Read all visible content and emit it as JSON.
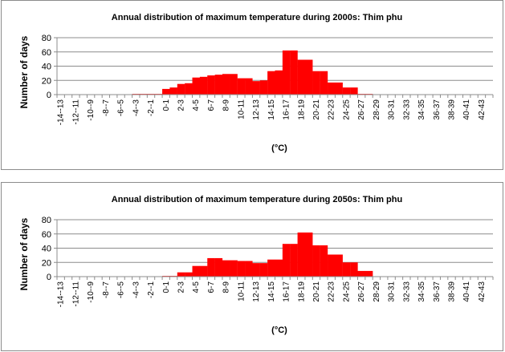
{
  "chart_data": [
    {
      "type": "bar",
      "title": "Annual distribution of maximum  temperature during 2000s: Thim phu",
      "xlabel": "(°C)",
      "ylabel": "Number of days",
      "ylim": [
        0,
        80
      ],
      "yticks": [
        0,
        20,
        40,
        60,
        80
      ],
      "bar_color": "#ff0000",
      "categories": [
        "-14--13",
        "-12--11",
        "-10--9",
        "-8--7",
        "-6--5",
        "-4--3",
        "-2--1",
        "0-1",
        "2-3",
        "4-5",
        "6-7",
        "8-9",
        "10-11",
        "12-13",
        "14-15",
        "16-17",
        "18-19",
        "20-21",
        "22-23",
        "24-25",
        "26-27",
        "28-29",
        "30-31",
        "32-33",
        "34-35",
        "36-37",
        "38-39",
        "40-41",
        "42-43"
      ],
      "bins": [
        -14,
        -13,
        -12,
        -11,
        -10,
        -9,
        -8,
        -7,
        -6,
        -5,
        -4,
        -3,
        -2,
        -1,
        0,
        1,
        2,
        3,
        4,
        5,
        6,
        7,
        8,
        9,
        10,
        11,
        12,
        13,
        14,
        15,
        16,
        17,
        18,
        19,
        20,
        21,
        22,
        23,
        24,
        25,
        26,
        27,
        28,
        29,
        30,
        31,
        32,
        33,
        34,
        35,
        36,
        37,
        38,
        39,
        40,
        41,
        42,
        43
      ],
      "values": [
        0,
        0,
        0,
        0,
        0,
        0,
        0,
        0,
        0,
        0,
        1,
        1,
        1,
        1,
        8,
        10,
        15,
        16,
        24,
        25,
        27,
        28,
        29,
        29,
        23,
        23,
        19,
        20,
        33,
        34,
        62,
        62,
        49,
        49,
        33,
        33,
        17,
        17,
        10,
        10,
        1,
        1,
        0,
        0,
        0,
        0,
        0,
        0,
        0,
        0,
        0,
        0,
        0,
        0,
        0,
        0,
        0,
        0
      ]
    },
    {
      "type": "bar",
      "title": "Annual distribution of maximum  temperature during 2050s: Thim phu",
      "xlabel": "(°C)",
      "ylabel": "Number of days",
      "ylim": [
        0,
        80
      ],
      "yticks": [
        0,
        20,
        40,
        60,
        80
      ],
      "bar_color": "#ff0000",
      "categories": [
        "-14--13",
        "-12--11",
        "-10--9",
        "-8--7",
        "-6--5",
        "-4--3",
        "-2--1",
        "0-1",
        "2-3",
        "4-5",
        "6-7",
        "8-9",
        "10-11",
        "12-13",
        "14-15",
        "16-17",
        "18-19",
        "20-21",
        "22-23",
        "24-25",
        "26-27",
        "28-29",
        "30-31",
        "32-33",
        "34-35",
        "36-37",
        "38-39",
        "40-41",
        "42-43"
      ],
      "bins": [
        -14,
        -13,
        -12,
        -11,
        -10,
        -9,
        -8,
        -7,
        -6,
        -5,
        -4,
        -3,
        -2,
        -1,
        0,
        1,
        2,
        3,
        4,
        5,
        6,
        7,
        8,
        9,
        10,
        11,
        12,
        13,
        14,
        15,
        16,
        17,
        18,
        19,
        20,
        21,
        22,
        23,
        24,
        25,
        26,
        27,
        28,
        29,
        30,
        31,
        32,
        33,
        34,
        35,
        36,
        37,
        38,
        39,
        40,
        41,
        42,
        43
      ],
      "values": [
        0,
        0,
        0,
        0,
        0,
        0,
        0,
        0,
        0,
        0,
        0,
        0,
        0,
        0,
        1,
        1,
        6,
        6,
        15,
        15,
        26,
        26,
        23,
        23,
        22,
        22,
        19,
        19,
        24,
        24,
        46,
        46,
        62,
        62,
        44,
        44,
        31,
        31,
        20,
        20,
        8,
        8,
        0,
        0,
        0,
        0,
        0,
        0,
        0,
        0,
        0,
        0,
        0,
        0,
        0,
        0,
        0,
        0
      ]
    }
  ]
}
